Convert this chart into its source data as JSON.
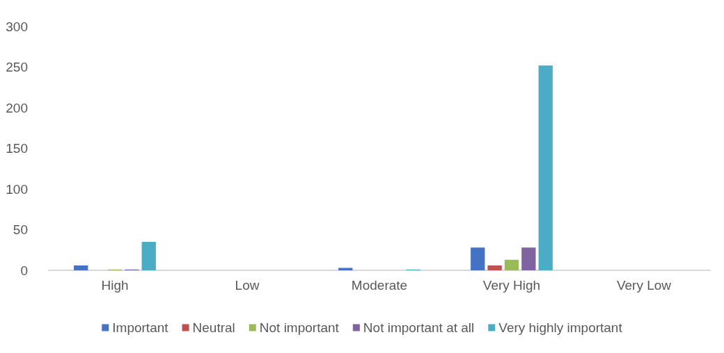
{
  "chart_data": {
    "type": "bar",
    "categories": [
      "High",
      "Low",
      "Moderate",
      "Very High",
      "Very Low"
    ],
    "series": [
      {
        "name": "Important",
        "color": "#4472c4",
        "values": [
          6,
          0,
          3,
          28,
          0
        ]
      },
      {
        "name": "Neutral",
        "color": "#c0504d",
        "values": [
          0,
          0,
          0,
          6,
          0
        ]
      },
      {
        "name": "Not important",
        "color": "#9bbb59",
        "values": [
          1,
          0,
          0,
          13,
          0
        ]
      },
      {
        "name": "Not important at all",
        "color": "#8064a2",
        "values": [
          1,
          0,
          0,
          28,
          0
        ]
      },
      {
        "name": "Very highly important",
        "color": "#4bacc6",
        "values": [
          35,
          0,
          1,
          252,
          0
        ]
      }
    ],
    "ylim": [
      0,
      300
    ],
    "yticks": [
      0,
      50,
      100,
      150,
      200,
      250,
      300
    ],
    "grid": false,
    "legend": "bottom"
  }
}
